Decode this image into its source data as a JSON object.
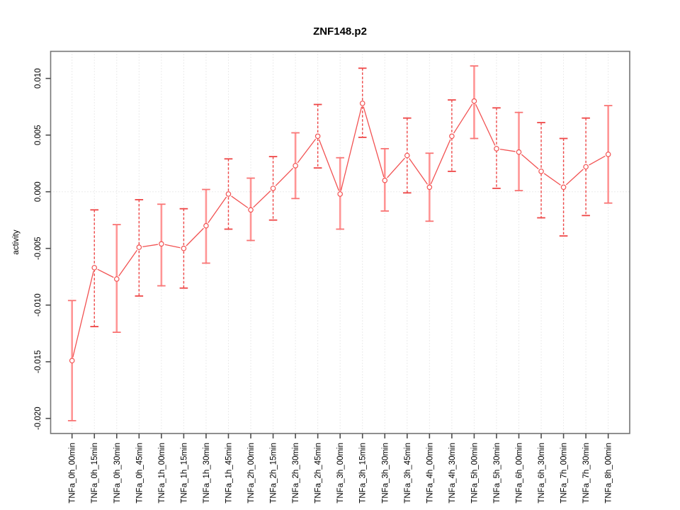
{
  "page": {
    "background": "#ffffff"
  },
  "chart_data": {
    "type": "line",
    "title": "ZNF148.p2",
    "xlabel": "",
    "ylabel": "activity",
    "legend": "none",
    "grid": {
      "vertical": "dotted line at every category",
      "horizontal": "dotted line at zero only"
    },
    "ylim": [
      -0.0213,
      0.0124
    ],
    "yticks": {
      "values": [
        0.01,
        0.005,
        0.0,
        -0.005,
        -0.01,
        -0.015,
        -0.02
      ],
      "labels": [
        "0.010",
        "0.005",
        "0.000",
        "-0.005",
        "-0.010",
        "-0.015",
        "-0.020"
      ]
    },
    "categories": [
      "TNFa_0h_00min",
      "TNFa_0h_15min",
      "TNFa_0h_30min",
      "TNFa_0h_45min",
      "TNFa_1h_00min",
      "TNFa_1h_15min",
      "TNFa_1h_30min",
      "TNFa_1h_45min",
      "TNFa_2h_00min",
      "TNFa_2h_15min",
      "TNFa_2h_30min",
      "TNFa_2h_45min",
      "TNFa_3h_00min",
      "TNFa_3h_15min",
      "TNFa_3h_30min",
      "TNFa_3h_45min",
      "TNFa_4h_00min",
      "TNFa_4h_30min",
      "TNFa_5h_00min",
      "TNFa_5h_30min",
      "TNFa_6h_00min",
      "TNFa_6h_30min",
      "TNFa_7h_00min",
      "TNFa_7h_30min",
      "TNFa_8h_00min"
    ],
    "series": [
      {
        "name": "activity",
        "marker": "open-circle",
        "values": [
          -0.0149,
          -0.0067,
          -0.0077,
          -0.0049,
          -0.0046,
          -0.005,
          -0.003,
          -0.0002,
          -0.0016,
          0.0003,
          0.0023,
          0.0049,
          -0.0002,
          0.0078,
          0.001,
          0.0032,
          0.0004,
          0.0049,
          0.008,
          0.0038,
          0.0035,
          0.0018,
          0.0004,
          0.0022,
          0.0033
        ],
        "err_low": [
          -0.0202,
          -0.0119,
          -0.0124,
          -0.0092,
          -0.0083,
          -0.0085,
          -0.0063,
          -0.0033,
          -0.0043,
          -0.0025,
          -0.0006,
          0.0021,
          -0.0033,
          0.0048,
          -0.0017,
          -0.0001,
          -0.0026,
          0.0018,
          0.0047,
          0.0003,
          0.0001,
          -0.0023,
          -0.0039,
          -0.0021,
          -0.001
        ],
        "err_high": [
          -0.0096,
          -0.0016,
          -0.0029,
          -0.0007,
          -0.0011,
          -0.0015,
          0.0002,
          0.0029,
          0.0012,
          0.0031,
          0.0052,
          0.0077,
          0.003,
          0.0109,
          0.0038,
          0.0065,
          0.0034,
          0.0081,
          0.0111,
          0.0074,
          0.007,
          0.0061,
          0.0047,
          0.0065,
          0.0076
        ],
        "bar_style": [
          "solid",
          "dashed",
          "solid",
          "dashed",
          "solid",
          "dashed",
          "solid",
          "dashed",
          "solid",
          "dashed",
          "solid",
          "dashed",
          "solid",
          "dashed",
          "solid",
          "dashed",
          "solid",
          "dashed",
          "solid",
          "dashed",
          "solid",
          "dashed",
          "dashed",
          "dashed",
          "solid"
        ]
      }
    ],
    "colors": {
      "line": "#f25252",
      "marker_stroke": "#f25252",
      "marker_fill": "#ffffff",
      "errorbar_solid": "#ff9595",
      "errorbar_solid_cap": "#f87474",
      "errorbar_dashed": "#ee4747",
      "grid": "#d6d6d6",
      "zero_line": "#d6d6d6",
      "frame": "#757575",
      "tick": "#4d4d4d",
      "text": "#000000"
    }
  }
}
